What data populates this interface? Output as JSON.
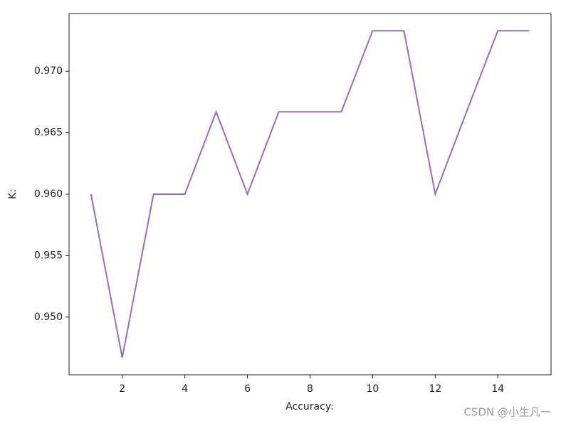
{
  "chart_data": {
    "type": "line",
    "x": [
      1,
      2,
      3,
      4,
      5,
      6,
      7,
      8,
      9,
      10,
      11,
      12,
      13,
      14,
      15
    ],
    "series": [
      {
        "color": "#9a6bbf",
        "values": [
          0.96,
          0.9467,
          0.96,
          0.96,
          0.9667,
          0.96,
          0.9667,
          0.9667,
          0.9667,
          0.9733,
          0.9733,
          0.96,
          0.9667,
          0.9733,
          0.9733
        ]
      }
    ],
    "xlabel": "Accuracy:",
    "ylabel": "K:",
    "xlim": [
      0.3,
      15.7
    ],
    "xticks": [
      2,
      4,
      6,
      8,
      10,
      12,
      14
    ],
    "ylim": [
      0.9453,
      0.9747
    ],
    "yticks": [
      {
        "value": 0.95,
        "label": "0.950"
      },
      {
        "value": 0.955,
        "label": "0.955"
      },
      {
        "value": 0.96,
        "label": "0.960"
      },
      {
        "value": 0.965,
        "label": "0.965"
      },
      {
        "value": 0.97,
        "label": "0.970"
      }
    ],
    "watermark": "CSDN @小生凡一"
  }
}
